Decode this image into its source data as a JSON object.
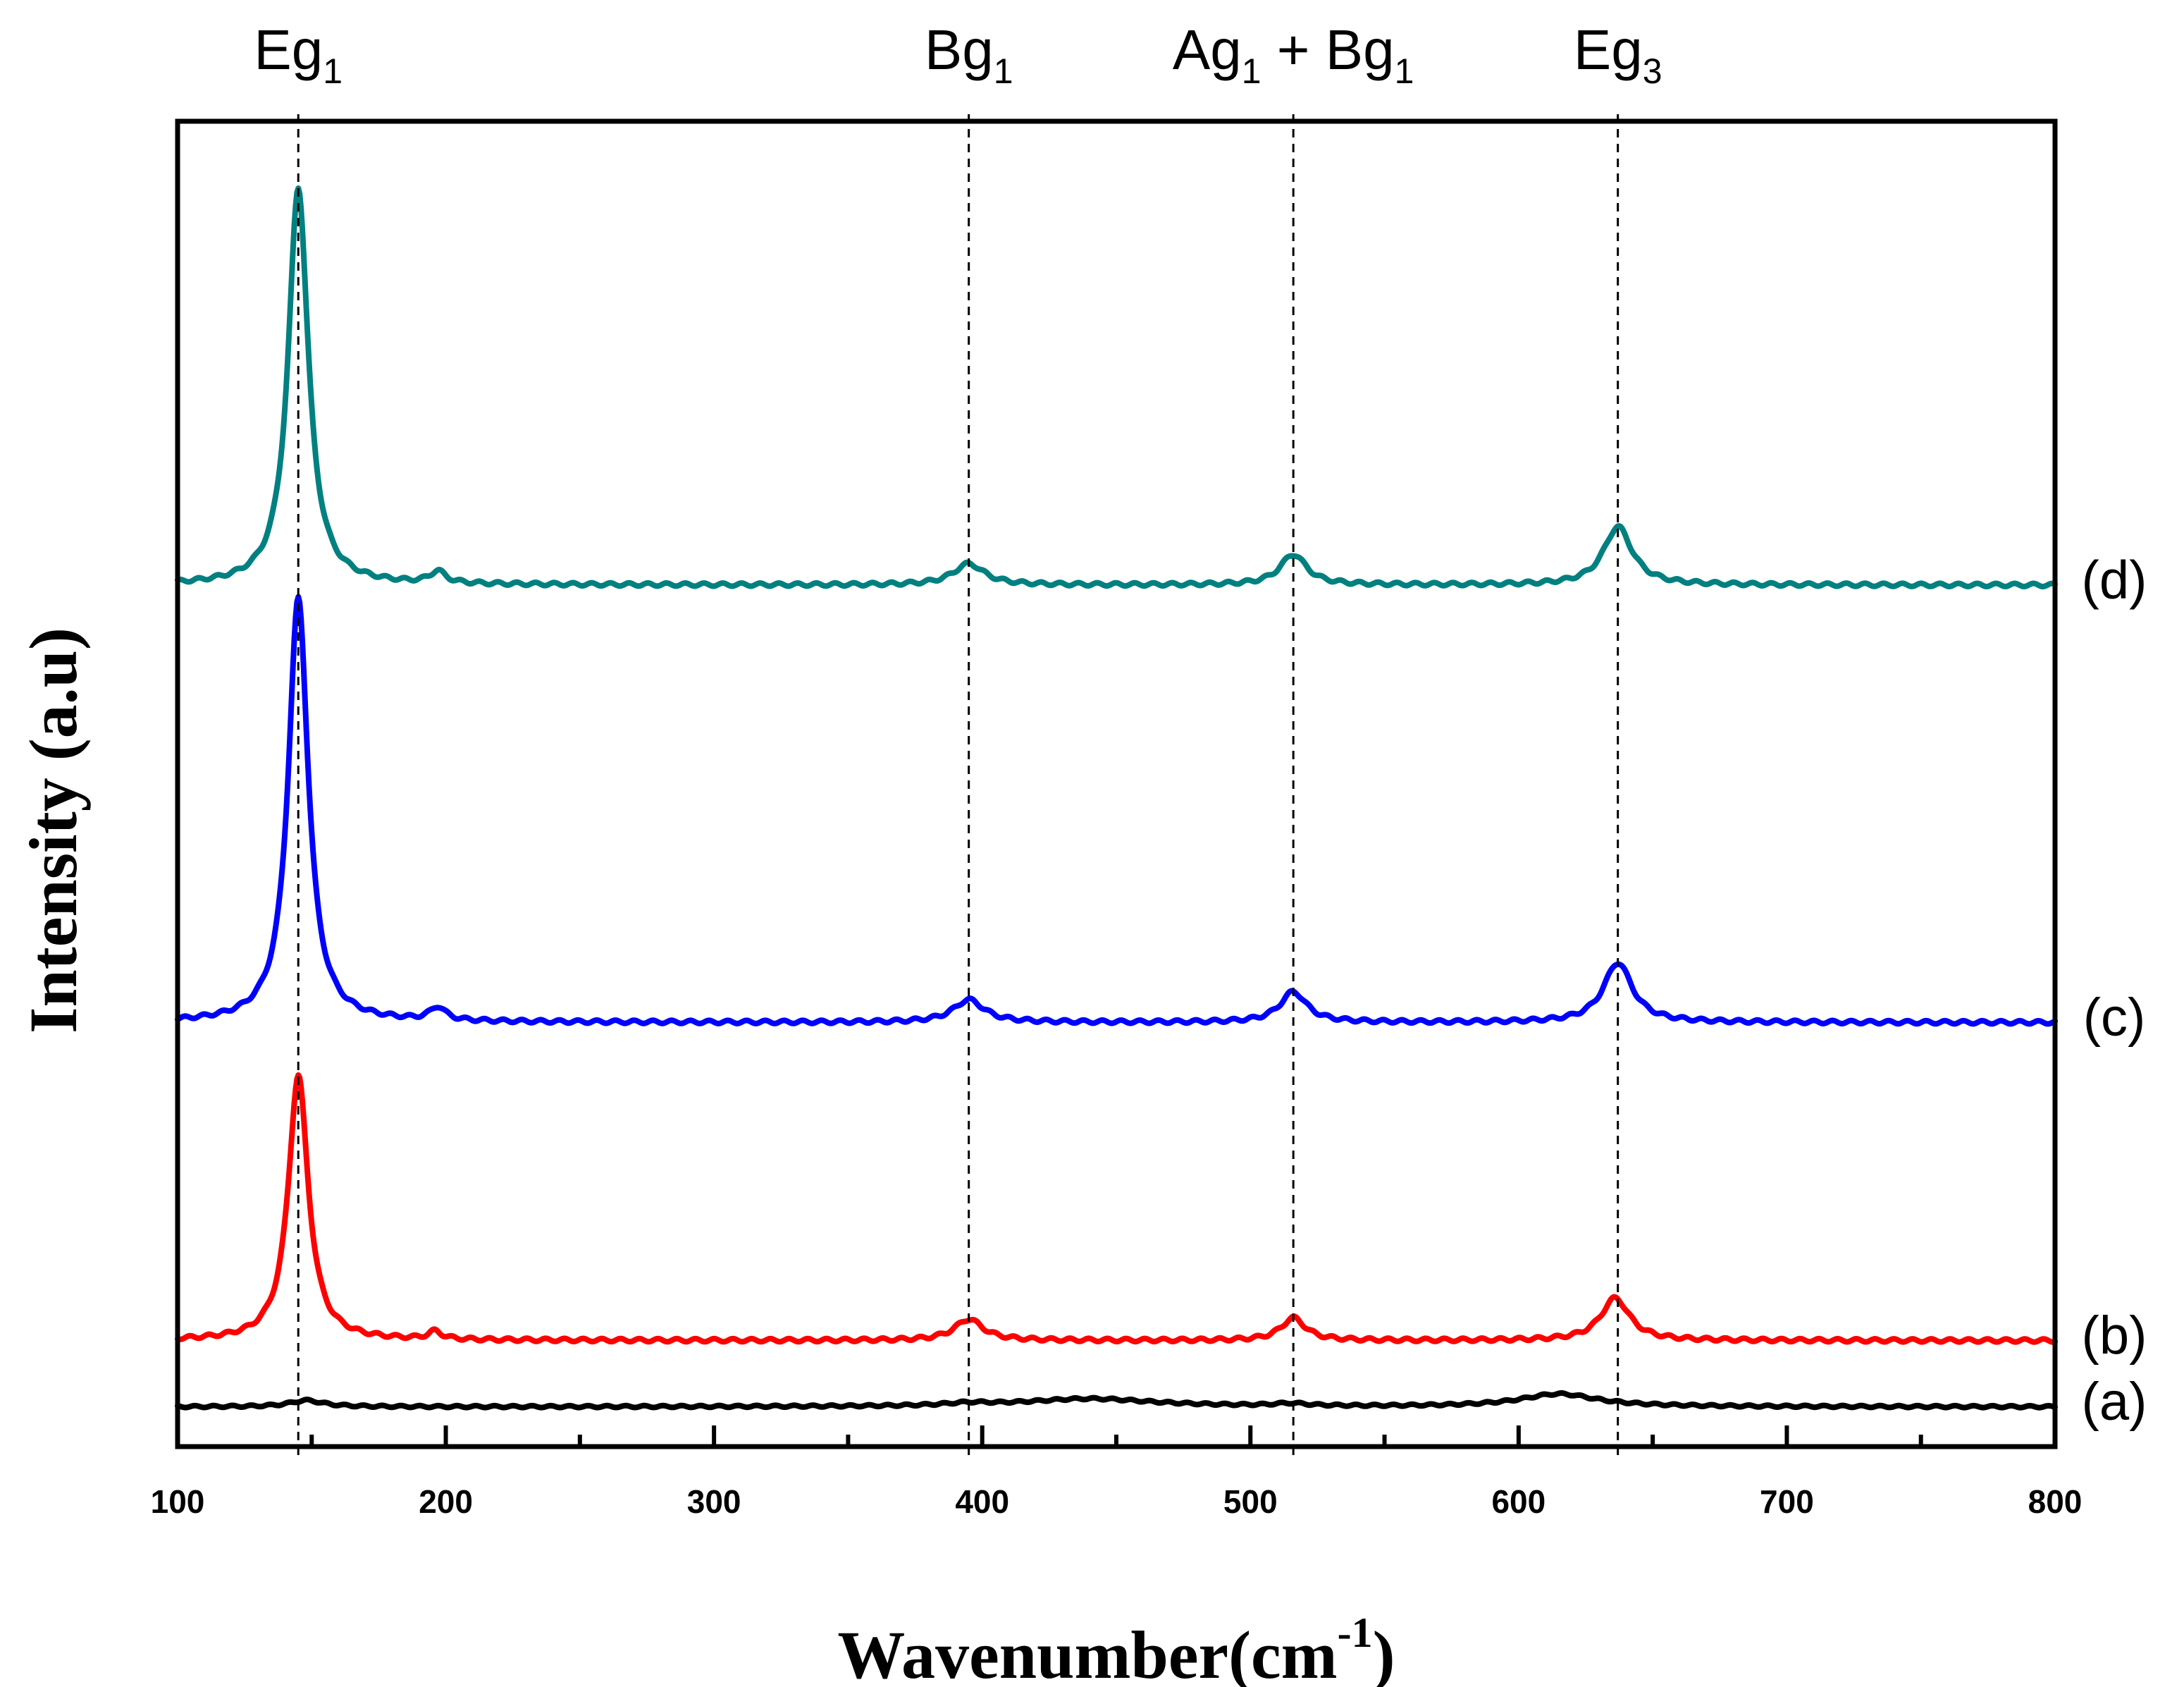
{
  "chart_data": {
    "type": "line",
    "title": "",
    "xlabel": "Wavenumber(cm",
    "xlabel_superscript": "-1",
    "xlabel_close": ")",
    "ylabel": "Intensity (a.u)",
    "xlim": [
      100,
      800
    ],
    "ylim": [
      0,
      100
    ],
    "x_ticks": [
      100,
      200,
      300,
      400,
      500,
      600,
      700,
      800
    ],
    "y_ticks_shown": false,
    "peak_markers": [
      {
        "name": "Eg",
        "sub": "1",
        "suffix": "",
        "suffix_sub": "",
        "x": 145
      },
      {
        "name": "Bg",
        "sub": "1",
        "suffix": "",
        "suffix_sub": "",
        "x": 395
      },
      {
        "name": "Ag",
        "sub": "1",
        "suffix": " + Bg",
        "suffix_sub": "1",
        "x": 516
      },
      {
        "name": "Eg",
        "sub": "3",
        "suffix": "",
        "suffix_sub": "",
        "x": 637
      }
    ],
    "series": [
      {
        "name": "(a)",
        "color": "#000000",
        "baseline": 3,
        "amp": 0.6,
        "peaks": [
          [
            148,
            0.8,
            15
          ],
          [
            395,
            0.3,
            20
          ],
          [
            440,
            1.0,
            60
          ],
          [
            515,
            0.3,
            15
          ],
          [
            615,
            1.6,
            35
          ]
        ]
      },
      {
        "name": "(b)",
        "color": "#ff0000",
        "baseline": 8,
        "amp": 1,
        "peaks": [
          [
            145,
            20,
            9
          ],
          [
            196,
            0.6,
            6
          ],
          [
            395,
            1.6,
            13
          ],
          [
            516,
            1.7,
            11
          ],
          [
            636,
            3.2,
            13
          ]
        ]
      },
      {
        "name": "(c)",
        "color": "#0000ff",
        "baseline": 32,
        "amp": 1,
        "peaks": [
          [
            145,
            32,
            9
          ],
          [
            197,
            1.0,
            7
          ],
          [
            395,
            1.7,
            14
          ],
          [
            516,
            2.3,
            12
          ],
          [
            637,
            4.5,
            13
          ]
        ]
      },
      {
        "name": "(d)",
        "color": "#008080",
        "baseline": 65,
        "amp": 1,
        "peaks": [
          [
            145,
            30,
            9
          ],
          [
            197,
            0.9,
            7
          ],
          [
            395,
            1.6,
            14
          ],
          [
            516,
            2.3,
            12
          ],
          [
            637,
            4.4,
            13
          ]
        ]
      }
    ]
  }
}
